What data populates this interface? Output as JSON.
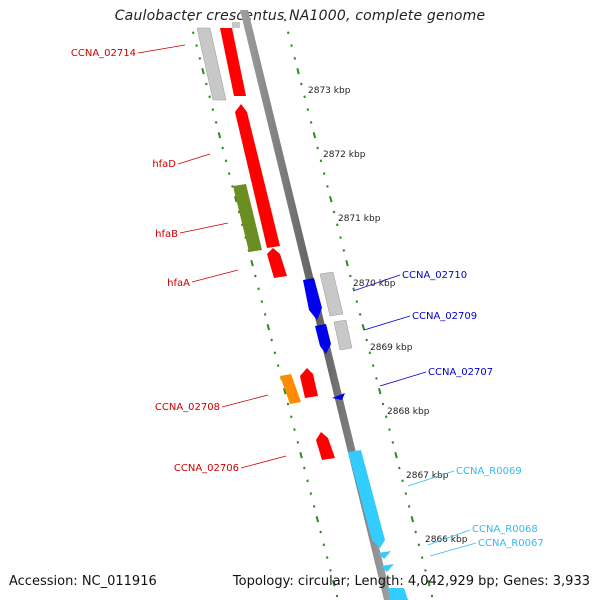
{
  "title": "Caulobacter crescentus NA1000, complete genome",
  "footer": {
    "accession": "Accession: NC_011916",
    "summary": "Topology: circular; Length: 4,042,929 bp; Genes: 3,933"
  },
  "colors": {
    "gene_red": "#ff0000",
    "gene_grey": "#c8c8c8",
    "gene_olive": "#6b8e23",
    "gene_blue": "#0000ee",
    "gene_orange": "#ff8c00",
    "rna_cyan": "#33ccff",
    "backbone": "#7a7a7a",
    "ticks": "#2e8b22"
  },
  "kbp_labels": [
    "2873 kbp",
    "2872 kbp",
    "2871 kbp",
    "2870 kbp",
    "2869 kbp",
    "2868 kbp",
    "2867 kbp",
    "2866 kbp"
  ],
  "left_labels": [
    "CCNA_02714",
    "hfaD",
    "hfaB",
    "hfaA",
    "CCNA_02708",
    "CCNA_02706"
  ],
  "right_labels": [
    "CCNA_02710",
    "CCNA_02709",
    "CCNA_02707",
    "CCNA_R0069",
    "CCNA_R0068",
    "CCNA_R0067"
  ]
}
